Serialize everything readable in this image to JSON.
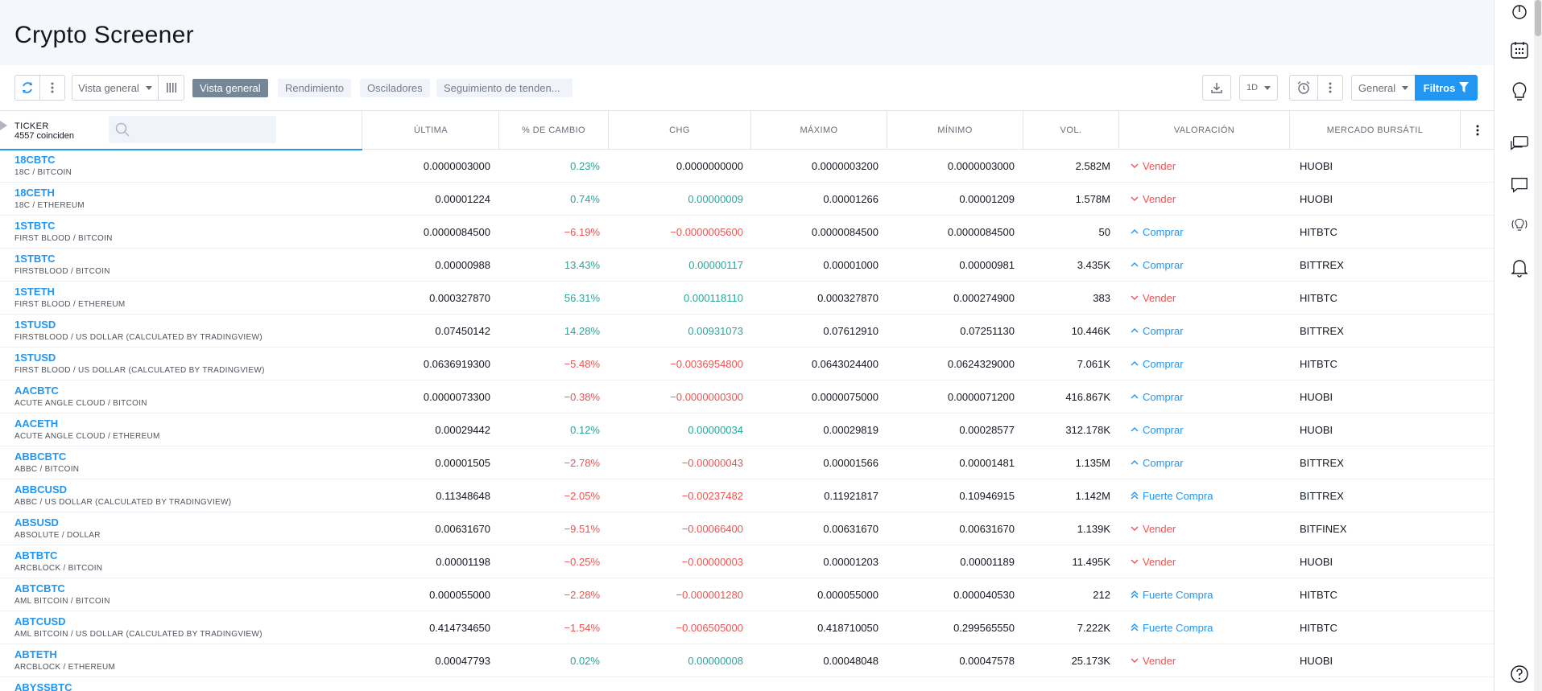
{
  "page": {
    "title": "Crypto Screener"
  },
  "toolbar": {
    "preset_label": "Vista general",
    "tabs": [
      "Vista general",
      "Rendimiento",
      "Osciladores",
      "Seguimiento de tenden..."
    ],
    "interval_label": "1D",
    "general_label": "General",
    "filters_label": "Filtros"
  },
  "table": {
    "ticker_label": "TICKER",
    "match_count": "4557 coinciden",
    "columns": [
      "ÚLTIMA",
      "% DE CAMBIO",
      "CHG",
      "MÁXIMO",
      "MÍNIMO",
      "VOL.",
      "VALORACIÓN",
      "MERCADO BURSÁTIL"
    ],
    "rows": [
      {
        "symbol": "18CBTC",
        "desc": "18C / BITCOIN",
        "last": "0.0000003000",
        "pct": "0.23%",
        "chg": "0.0000000000",
        "high": "0.0000003200",
        "low": "0.0000003000",
        "vol": "2.582M",
        "rating": "Vender",
        "rating_type": "sell",
        "rating_icon": "chevron-down",
        "exchange": "HUOBI",
        "pct_dir": "pos",
        "chg_dir": "none"
      },
      {
        "symbol": "18CETH",
        "desc": "18C / ETHEREUM",
        "last": "0.00001224",
        "pct": "0.74%",
        "chg": "0.00000009",
        "high": "0.00001266",
        "low": "0.00001209",
        "vol": "1.578M",
        "rating": "Vender",
        "rating_type": "sell",
        "rating_icon": "chevron-down",
        "exchange": "HUOBI",
        "pct_dir": "pos",
        "chg_dir": "pos"
      },
      {
        "symbol": "1STBTC",
        "desc": "FIRST BLOOD / BITCOIN",
        "last": "0.0000084500",
        "pct": "−6.19%",
        "chg": "−0.0000005600",
        "high": "0.0000084500",
        "low": "0.0000084500",
        "vol": "50",
        "rating": "Comprar",
        "rating_type": "buy",
        "rating_icon": "chevron-up",
        "exchange": "HITBTC",
        "pct_dir": "neg",
        "chg_dir": "neg"
      },
      {
        "symbol": "1STBTC",
        "desc": "FIRSTBLOOD / BITCOIN",
        "last": "0.00000988",
        "pct": "13.43%",
        "chg": "0.00000117",
        "high": "0.00001000",
        "low": "0.00000981",
        "vol": "3.435K",
        "rating": "Comprar",
        "rating_type": "buy",
        "rating_icon": "chevron-up",
        "exchange": "BITTREX",
        "pct_dir": "pos",
        "chg_dir": "pos"
      },
      {
        "symbol": "1STETH",
        "desc": "FIRST BLOOD / ETHEREUM",
        "last": "0.000327870",
        "pct": "56.31%",
        "chg": "0.000118110",
        "high": "0.000327870",
        "low": "0.000274900",
        "vol": "383",
        "rating": "Vender",
        "rating_type": "sell",
        "rating_icon": "chevron-down",
        "exchange": "HITBTC",
        "pct_dir": "pos",
        "chg_dir": "pos"
      },
      {
        "symbol": "1STUSD",
        "desc": "FIRSTBLOOD / US DOLLAR (CALCULATED BY TRADINGVIEW)",
        "last": "0.07450142",
        "pct": "14.28%",
        "chg": "0.00931073",
        "high": "0.07612910",
        "low": "0.07251130",
        "vol": "10.446K",
        "rating": "Comprar",
        "rating_type": "buy",
        "rating_icon": "chevron-up",
        "exchange": "BITTREX",
        "pct_dir": "pos",
        "chg_dir": "pos"
      },
      {
        "symbol": "1STUSD",
        "desc": "FIRST BLOOD / US DOLLAR (CALCULATED BY TRADINGVIEW)",
        "last": "0.0636919300",
        "pct": "−5.48%",
        "chg": "−0.0036954800",
        "high": "0.0643024400",
        "low": "0.0624329000",
        "vol": "7.061K",
        "rating": "Comprar",
        "rating_type": "buy",
        "rating_icon": "chevron-up",
        "exchange": "HITBTC",
        "pct_dir": "neg",
        "chg_dir": "neg"
      },
      {
        "symbol": "AACBTC",
        "desc": "ACUTE ANGLE CLOUD / BITCOIN",
        "last": "0.0000073300",
        "pct": "−0.38%",
        "chg": "−0.0000000300",
        "high": "0.0000075000",
        "low": "0.0000071200",
        "vol": "416.867K",
        "rating": "Comprar",
        "rating_type": "buy",
        "rating_icon": "chevron-up",
        "exchange": "HUOBI",
        "pct_dir": "neg",
        "chg_dir": "neg"
      },
      {
        "symbol": "AACETH",
        "desc": "ACUTE ANGLE CLOUD / ETHEREUM",
        "last": "0.00029442",
        "pct": "0.12%",
        "chg": "0.00000034",
        "high": "0.00029819",
        "low": "0.00028577",
        "vol": "312.178K",
        "rating": "Comprar",
        "rating_type": "buy",
        "rating_icon": "chevron-up",
        "exchange": "HUOBI",
        "pct_dir": "pos",
        "chg_dir": "pos"
      },
      {
        "symbol": "ABBCBTC",
        "desc": "ABBC / BITCOIN",
        "last": "0.00001505",
        "pct": "−2.78%",
        "chg": "−0.00000043",
        "high": "0.00001566",
        "low": "0.00001481",
        "vol": "1.135M",
        "rating": "Comprar",
        "rating_type": "buy",
        "rating_icon": "chevron-up",
        "exchange": "BITTREX",
        "pct_dir": "neg",
        "chg_dir": "neg"
      },
      {
        "symbol": "ABBCUSD",
        "desc": "ABBC / US DOLLAR (CALCULATED BY TRADINGVIEW)",
        "last": "0.11348648",
        "pct": "−2.05%",
        "chg": "−0.00237482",
        "high": "0.11921817",
        "low": "0.10946915",
        "vol": "1.142M",
        "rating": "Fuerte Compra",
        "rating_type": "buy",
        "rating_icon": "double-chevron-up",
        "exchange": "BITTREX",
        "pct_dir": "neg",
        "chg_dir": "neg"
      },
      {
        "symbol": "ABSUSD",
        "desc": "ABSOLUTE / DOLLAR",
        "last": "0.00631670",
        "pct": "−9.51%",
        "chg": "−0.00066400",
        "high": "0.00631670",
        "low": "0.00631670",
        "vol": "1.139K",
        "rating": "Vender",
        "rating_type": "sell",
        "rating_icon": "chevron-down",
        "exchange": "BITFINEX",
        "pct_dir": "neg",
        "chg_dir": "neg"
      },
      {
        "symbol": "ABTBTC",
        "desc": "ARCBLOCK / BITCOIN",
        "last": "0.00001198",
        "pct": "−0.25%",
        "chg": "−0.00000003",
        "high": "0.00001203",
        "low": "0.00001189",
        "vol": "11.495K",
        "rating": "Vender",
        "rating_type": "sell",
        "rating_icon": "chevron-down",
        "exchange": "HUOBI",
        "pct_dir": "neg",
        "chg_dir": "neg"
      },
      {
        "symbol": "ABTCBTC",
        "desc": "AML BITCOIN / BITCOIN",
        "last": "0.000055000",
        "pct": "−2.28%",
        "chg": "−0.000001280",
        "high": "0.000055000",
        "low": "0.000040530",
        "vol": "212",
        "rating": "Fuerte Compra",
        "rating_type": "buy",
        "rating_icon": "double-chevron-up",
        "exchange": "HITBTC",
        "pct_dir": "neg",
        "chg_dir": "neg"
      },
      {
        "symbol": "ABTCUSD",
        "desc": "AML BITCOIN / US DOLLAR (CALCULATED BY TRADINGVIEW)",
        "last": "0.414734650",
        "pct": "−1.54%",
        "chg": "−0.006505000",
        "high": "0.418710050",
        "low": "0.299565550",
        "vol": "7.222K",
        "rating": "Fuerte Compra",
        "rating_type": "buy",
        "rating_icon": "double-chevron-up",
        "exchange": "HITBTC",
        "pct_dir": "neg",
        "chg_dir": "neg"
      },
      {
        "symbol": "ABTETH",
        "desc": "ARCBLOCK / ETHEREUM",
        "last": "0.00047793",
        "pct": "0.02%",
        "chg": "0.00000008",
        "high": "0.00048048",
        "low": "0.00047578",
        "vol": "25.173K",
        "rating": "Vender",
        "rating_type": "sell",
        "rating_icon": "chevron-down",
        "exchange": "HUOBI",
        "pct_dir": "pos",
        "chg_dir": "pos"
      },
      {
        "symbol": "ABYSSBTC",
        "desc": "",
        "last": "",
        "pct": "",
        "chg": "",
        "high": "",
        "low": "",
        "vol": "",
        "rating": "",
        "rating_type": "sell",
        "rating_icon": "",
        "exchange": "",
        "pct_dir": "neg",
        "chg_dir": "pos"
      }
    ]
  },
  "colors": {
    "accent": "#2196f3",
    "positive": "#26a69a",
    "negative": "#ef5350",
    "active_tab": "#758696"
  },
  "sidebar_icons": [
    "timer-icon",
    "calendar-icon",
    "lightbulb-icon",
    "chat-icon",
    "comment-icon",
    "live-ideas-icon",
    "bell-icon",
    "help-icon"
  ]
}
